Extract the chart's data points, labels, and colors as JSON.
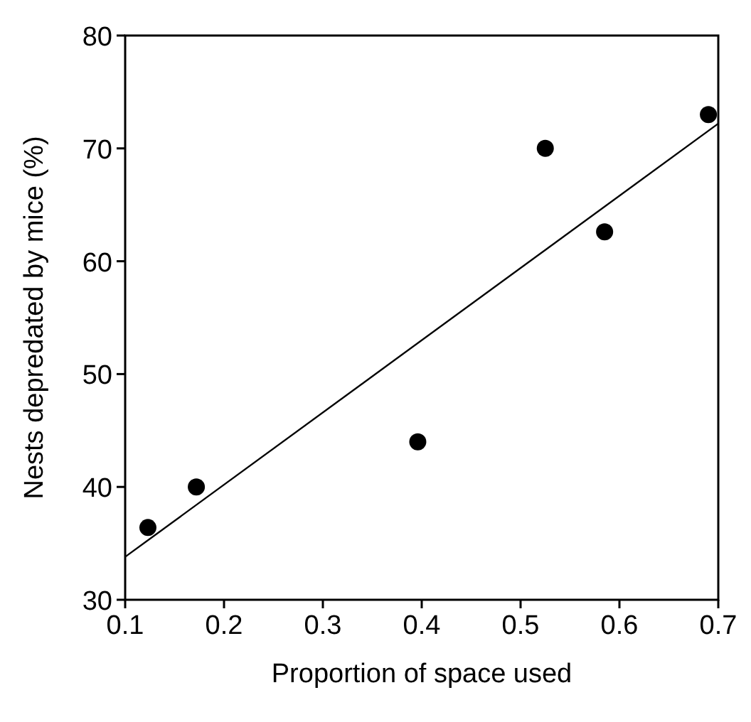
{
  "chart_data": {
    "type": "scatter",
    "xlabel": "Proportion of space used",
    "ylabel": "Nests depredated by mice (%)",
    "xlim": [
      0.1,
      0.7
    ],
    "xticks": [
      0.1,
      0.2,
      0.3,
      0.4,
      0.5,
      0.6,
      0.7
    ],
    "ylim": [
      30,
      80
    ],
    "yticks": [
      30,
      40,
      50,
      60,
      70,
      80
    ],
    "grid": false,
    "marker": "circle",
    "series": [
      {
        "color": "#000000",
        "x": [
          0.123,
          0.172,
          0.396,
          0.525,
          0.585,
          0.69
        ],
        "values": [
          36.4,
          40,
          44,
          70,
          62.6,
          73
        ]
      },
      {
        "type": "line",
        "color": "#000000",
        "x": [
          0.1,
          0.7
        ],
        "values": [
          33.8,
          72.2
        ],
        "marker": "none",
        "line_style": "solid"
      }
    ]
  }
}
